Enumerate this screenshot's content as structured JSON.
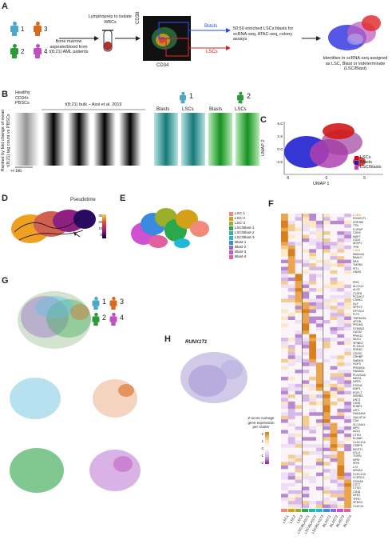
{
  "panels": {
    "A": "A",
    "B": "B",
    "C": "C",
    "D": "D",
    "E": "E",
    "F": "F",
    "G": "G",
    "H": "H"
  },
  "panelA": {
    "donor_numbers": [
      "1",
      "3",
      "2",
      "4"
    ],
    "marrow_text": "Bone marrow aspirate/blood from t(8;21) AML patients",
    "lymphoprep_text": "Lymphoprep to isolate WBCs",
    "axis_cd38": "CD38",
    "axis_cd34": "CD34",
    "gate_blasts": "Blasts",
    "gate_lscs": "LSCs",
    "enrich_text": "50:50 enriched LSCs:blasts for scRNA-seq, ATAC-seq, colony assays",
    "identity_text": "Identities in scRNA-seq assigned as LSC, Blast or indeterminate (LSC/Blast)"
  },
  "panelB": {
    "healthy_label": "Healthy CD34+ PBSCs",
    "bulk_label": "t(8;21) bulk – Assi et al. 2019",
    "ylabel": "Ranked by fold change of mean t(8;21) tag count vs PBSCs",
    "scale_label": "+/-1kb",
    "donor1": "1",
    "donor2": "2",
    "col_labels": [
      "Blasts",
      "LSCs",
      "Blasts",
      "LSCs"
    ]
  },
  "panelC": {
    "xlabel": "UMAP 1",
    "ylabel": "UMAP 2",
    "yticks": [
      "5.0",
      "2.5",
      "0.0",
      "-2.5",
      "-5.0"
    ],
    "xticks": [
      "-5",
      "0",
      "5"
    ],
    "legend": [
      {
        "label": "LSCs",
        "color": "#d0021b"
      },
      {
        "label": "Blasts",
        "color": "#1a1ad0"
      },
      {
        "label": "LSC/blasts",
        "color": "#c040c0"
      }
    ]
  },
  "panelD": {
    "title": "Pseudotime",
    "colorbar_ticks": [
      "30",
      "20",
      "10",
      "0"
    ]
  },
  "panelE": {
    "legend": [
      {
        "label": "LSC-1",
        "color": "#f08a7a"
      },
      {
        "label": "LSC-2",
        "color": "#d4a017"
      },
      {
        "label": "LSC-3",
        "color": "#9aae2a"
      },
      {
        "label": "LSC/Blast-1",
        "color": "#2aa84a"
      },
      {
        "label": "LSC/Blast-2",
        "color": "#2ab8a0"
      },
      {
        "label": "LSC/Blast-3",
        "color": "#20b8d8"
      },
      {
        "label": "Blast-1",
        "color": "#3a8ae0"
      },
      {
        "label": "Blast-2",
        "color": "#8a6ae0"
      },
      {
        "label": "Blast-3",
        "color": "#d050d0"
      },
      {
        "label": "Blast-4",
        "color": "#e060a0"
      }
    ]
  },
  "panelF": {
    "zscore_title": "Z-score Average gene expression per cluster",
    "zscore_ticks": [
      "2",
      "1",
      "0",
      "-1",
      "-2"
    ],
    "col_labels": [
      "LSC1",
      "LSC2",
      "LSC3",
      "LSC/BLAST1",
      "LSC/BLAST2",
      "LSC/BLAST3",
      "BLAST1",
      "BLAST2",
      "BLAST3",
      "BLAST4"
    ],
    "col_colors": [
      "#f08a7a",
      "#d4a017",
      "#9aae2a",
      "#2aa84a",
      "#2ab8a0",
      "#20b8d8",
      "#3a8ae0",
      "#8a6ae0",
      "#d050d0",
      "#e060a0"
    ],
    "genes": [
      "IL2RA",
      "RUNX1T1",
      "ZNF366",
      "TTN",
      "IL1RAP",
      "CDK6",
      "MAP7",
      "CD34",
      "AFAP1",
      "TRH",
      "CD69",
      "MAN1A1",
      "BAALC",
      "MN1",
      "TMSB4",
      "PIT1",
      "GNAS",
      "",
      "",
      "ERG",
      "ALOX12",
      "ALS2",
      "CLDN1",
      "PCDH17",
      "CSNK1",
      "HLF",
      "SPRY2",
      "DPYSL3",
      "FLT3",
      "TMEM154",
      "APOB",
      "PROM1",
      "ST8SIA2",
      "GATA2",
      "PRKG2",
      "MUC1",
      "SPINK2",
      "PLXDC2",
      "PDE4D",
      "CD200",
      "CRHBP",
      "SMIM24",
      "HOPX",
      "PRDM16",
      "FAM30A",
      "PLA2G4A",
      "MEIS1",
      "NPR3",
      "FSCN1",
      "EMP1",
      "EGFL7",
      "MSRB3",
      "DNTT",
      "CD99",
      "EHBP1",
      "LEF1",
      "FAM169A",
      "GALNT10",
      "CD9",
      "SLC44A1",
      "MPO",
      "AZU1",
      "CTSG",
      "ELANE",
      "CLEC11A",
      "CEBPE",
      "MGST1",
      "IGLL1",
      "TGFBI",
      "NPW",
      "IRF8",
      "LYZ",
      "MS4A3",
      "CLEC12A",
      "FCER1G",
      "S100A9",
      "CST7",
      "CTSD",
      "CD48",
      "NFE2",
      "TFRC",
      "SPNS3",
      "CLEC2L"
    ],
    "highlight": {
      "IL2RA": "#e08020",
      "CD69": "#e08020"
    }
  },
  "panelG": {
    "donors": [
      "1",
      "3",
      "2",
      "4"
    ]
  },
  "panelH": {
    "gene": "RUNX1T1"
  }
}
